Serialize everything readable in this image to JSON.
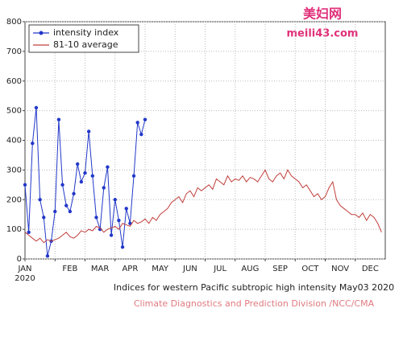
{
  "chart_data": {
    "type": "line",
    "caption": "Indices for western Pacific subtropic high intensity May03 2020",
    "credit": "Climate Diagnostics and Prediction Division /NCC/CMA",
    "watermark": "美妇网",
    "watermark_url": "meili43.com",
    "x_sublabel": "2020",
    "categories": [
      "JAN",
      null,
      null,
      null,
      null,
      null,
      null,
      null,
      "FEB",
      null,
      null,
      null,
      null,
      null,
      null,
      null,
      "MAR",
      null,
      null,
      null,
      null,
      null,
      null,
      null,
      "APR",
      null,
      null,
      null,
      null,
      null,
      null,
      null,
      "MAY",
      null,
      null,
      null,
      null,
      null,
      null,
      null,
      "JUN",
      null,
      null,
      null,
      null,
      null,
      null,
      null,
      "JUL",
      null,
      null,
      null,
      null,
      null,
      null,
      null,
      "AUG",
      null,
      null,
      null,
      null,
      null,
      null,
      null,
      "SEP",
      null,
      null,
      null,
      null,
      null,
      null,
      null,
      "OCT",
      null,
      null,
      null,
      null,
      null,
      null,
      null,
      "NOV",
      null,
      null,
      null,
      null,
      null,
      null,
      null,
      "DEC",
      null,
      null,
      null,
      null,
      null,
      null,
      null
    ],
    "series": [
      {
        "name": "intensity index",
        "color": "#2238c8",
        "markers": true,
        "values": [
          250,
          90,
          390,
          510,
          200,
          140,
          10,
          60,
          160,
          470,
          250,
          180,
          160,
          220,
          320,
          260,
          290,
          430,
          280,
          140,
          100,
          240,
          310,
          80,
          200,
          130,
          40,
          170,
          120,
          280,
          460,
          420,
          470,
          null,
          null,
          null,
          null,
          null,
          null,
          null,
          null,
          null,
          null,
          null,
          null,
          null,
          null,
          null,
          null,
          null,
          null,
          null,
          null,
          null,
          null,
          null,
          null,
          null,
          null,
          null,
          null,
          null,
          null,
          null,
          null,
          null,
          null,
          null,
          null,
          null,
          null,
          null,
          null,
          null,
          null,
          null,
          null,
          null,
          null,
          null,
          null,
          null,
          null,
          null,
          null,
          null,
          null,
          null,
          null,
          null,
          null,
          null,
          null,
          null,
          null,
          null
        ]
      },
      {
        "name": "81-10 average",
        "color": "#c0403c",
        "markers": false,
        "values": [
          90,
          80,
          70,
          60,
          70,
          55,
          65,
          60,
          65,
          70,
          80,
          90,
          75,
          70,
          80,
          95,
          90,
          100,
          95,
          110,
          105,
          90,
          100,
          105,
          110,
          100,
          120,
          115,
          110,
          130,
          120,
          125,
          135,
          120,
          140,
          130,
          150,
          160,
          170,
          190,
          200,
          210,
          190,
          220,
          230,
          210,
          240,
          230,
          240,
          250,
          235,
          270,
          260,
          250,
          280,
          260,
          270,
          265,
          280,
          260,
          275,
          270,
          260,
          280,
          300,
          270,
          260,
          280,
          290,
          270,
          300,
          280,
          270,
          260,
          240,
          250,
          230,
          210,
          220,
          200,
          210,
          240,
          260,
          200,
          180,
          170,
          160,
          150,
          150,
          140,
          155,
          130,
          150,
          140,
          120,
          90
        ]
      }
    ],
    "ylim": [
      0,
      800
    ],
    "yticks": [
      0,
      100,
      200,
      300,
      400,
      500,
      600,
      700,
      800
    ],
    "grid": true,
    "legend": "upper left"
  }
}
